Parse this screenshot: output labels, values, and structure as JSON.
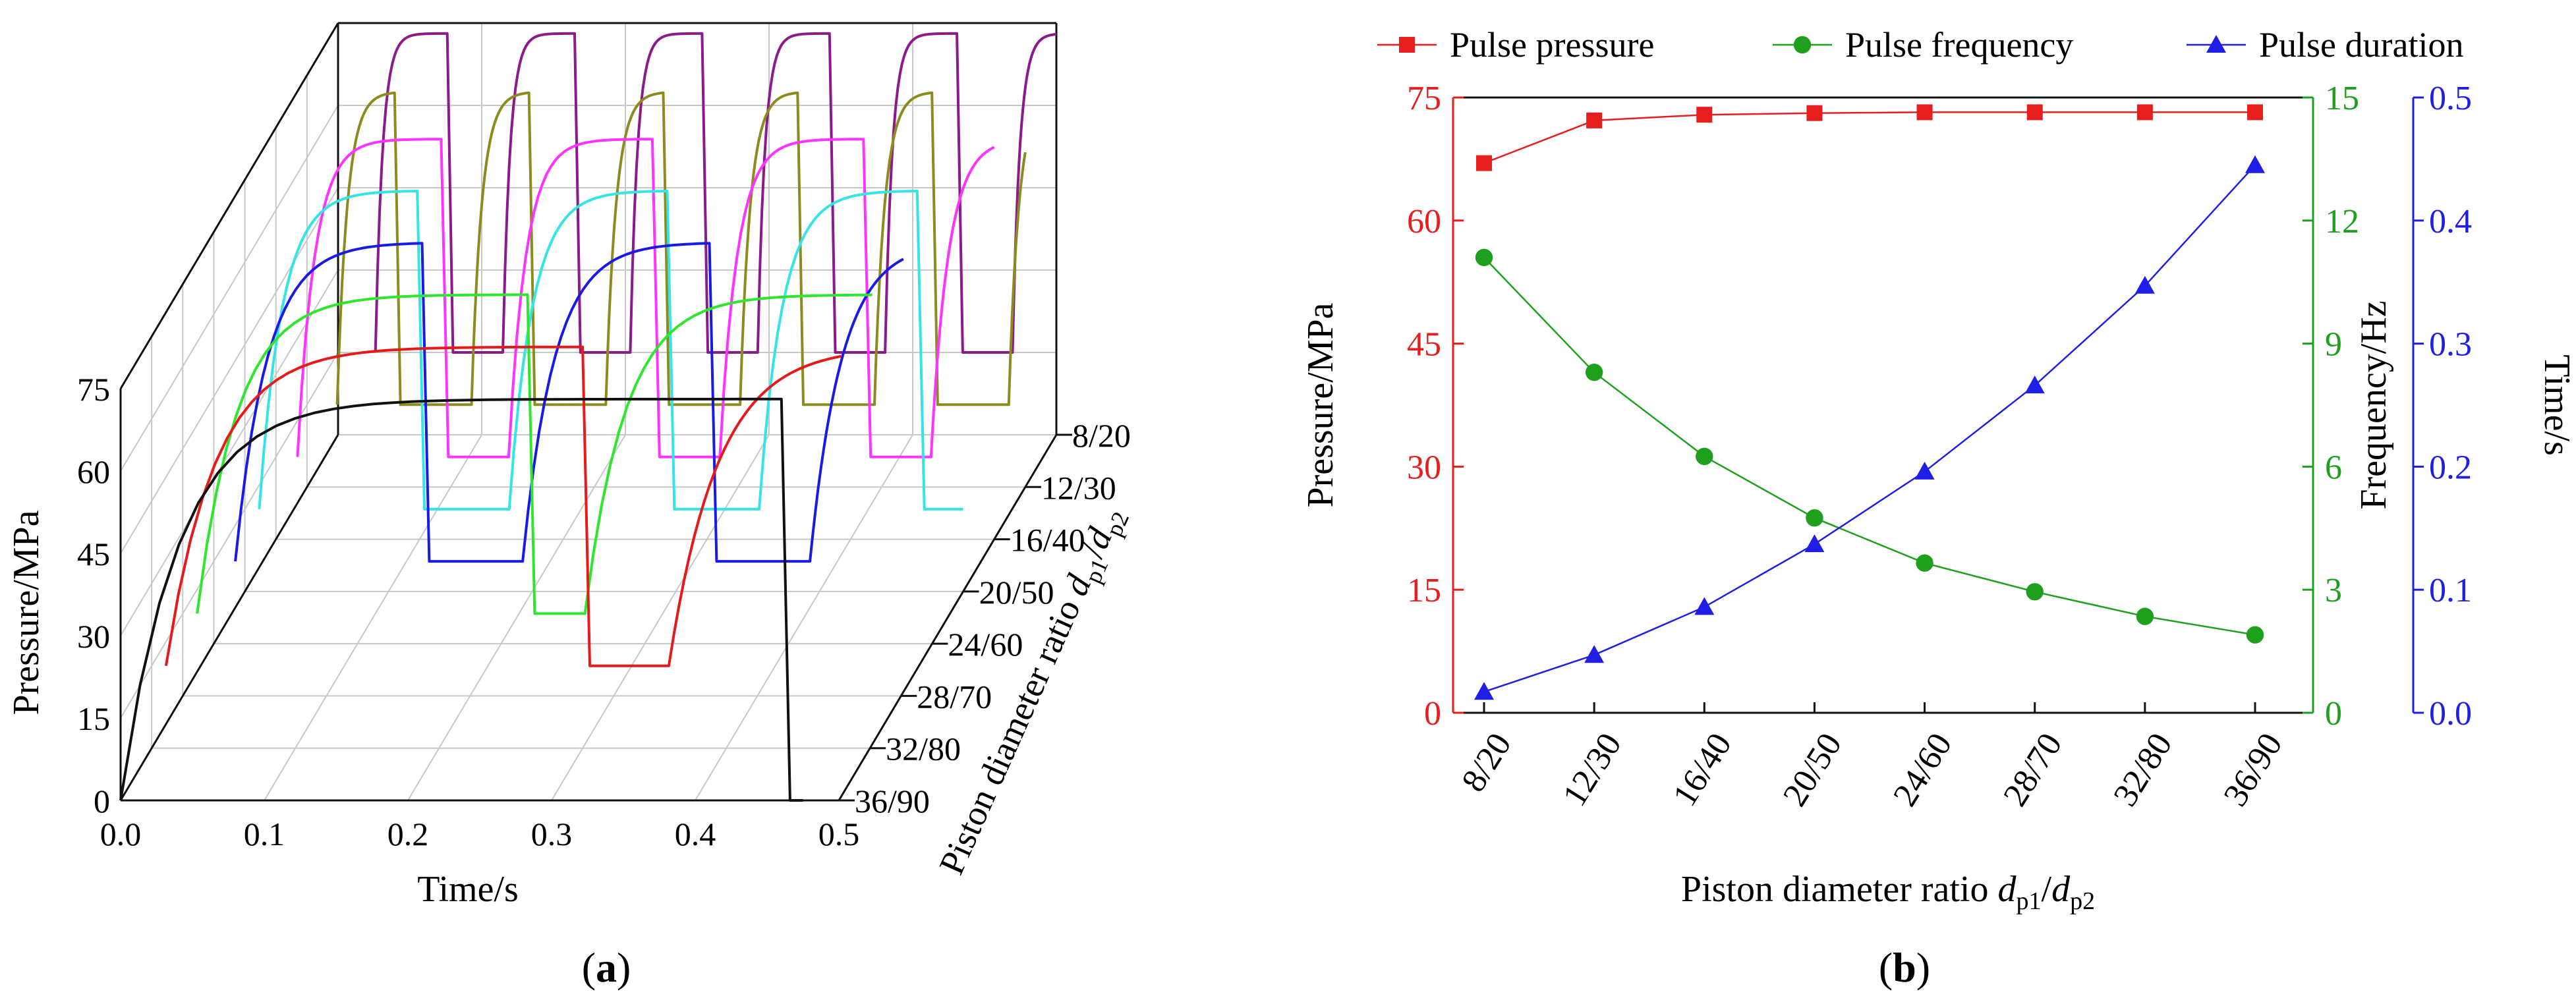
{
  "chart_data": [
    {
      "panel_label": "a",
      "type": "line",
      "subtype": "3d-waterfall",
      "xlabel": "Time/s",
      "ylabel": "Pressure/MPa",
      "zlabel_prefix": "Piston diameter ratio ",
      "zlabel_var1": "d",
      "zlabel_sub1": "p1",
      "zlabel_sep": "/",
      "zlabel_var2": "d",
      "zlabel_sub2": "p2",
      "xlim": [
        0,
        0.5
      ],
      "ylim": [
        0,
        75
      ],
      "x_ticks": [
        "0.0",
        "0.1",
        "0.2",
        "0.3",
        "0.4",
        "0.5"
      ],
      "y_ticks": [
        "0",
        "15",
        "30",
        "45",
        "60",
        "75"
      ],
      "z_ticks": [
        "8/20",
        "12/30",
        "16/40",
        "20/50",
        "24/60",
        "28/70",
        "32/80",
        "36/90"
      ],
      "series": [
        {
          "name": "8/20",
          "color": "#8B1A8B",
          "peak": 73.1,
          "low": 15.0,
          "start": 0.026,
          "period": 0.0887,
          "on": 0.05,
          "rise": 0.02,
          "fall": 0.004,
          "tau": 0.005,
          "end": 0.5
        },
        {
          "name": "12/30",
          "color": "#8C8C1E",
          "peak": 72.0,
          "low": 15.0,
          "start": 0.021,
          "period": 0.0935,
          "on": 0.04,
          "rise": 0.004,
          "fall": 0.004,
          "tau": 0.007,
          "end": 0.5
        },
        {
          "name": "16/40",
          "color": "#FF33FF",
          "peak": 72.9,
          "low": 15.0,
          "start": 0.015,
          "period": 0.147,
          "on": 0.1,
          "rise": 0.004,
          "fall": 0.005,
          "tau": 0.012,
          "end": 0.5
        },
        {
          "name": "20/50",
          "color": "#33E5E5",
          "peak": 73.0,
          "low": 15.0,
          "start": 0.01,
          "period": 0.174,
          "on": 0.11,
          "rise": 0.004,
          "fall": 0.005,
          "tau": 0.016,
          "end": 0.5
        },
        {
          "name": "24/60",
          "color": "#1A1AE6",
          "peak": 73.1,
          "low": 15.0,
          "start": 0.015,
          "period": 0.2,
          "on": 0.13,
          "rise": 0.004,
          "fall": 0.005,
          "tau": 0.022,
          "end": 0.48
        },
        {
          "name": "28/70",
          "color": "#2EE62E",
          "peak": 73.1,
          "low": 15.0,
          "start": 0.01,
          "period": 0.27,
          "on": 0.23,
          "rise": 0.004,
          "fall": 0.005,
          "tau": 0.028,
          "end": 0.48
        },
        {
          "name": "32/80",
          "color": "#E61A1A",
          "peak": 73.1,
          "low": 15.0,
          "start": 0.01,
          "period": 0.35,
          "on": 0.29,
          "rise": 0.004,
          "fall": 0.005,
          "tau": 0.034,
          "end": 0.48
        },
        {
          "name": "36/90",
          "color": "#111111",
          "peak": 73.1,
          "low": 0.0,
          "start": 0.0,
          "period": 0.5,
          "on": 0.46,
          "rise": 0.004,
          "fall": 0.006,
          "tau": 0.04,
          "end": 0.475
        }
      ]
    },
    {
      "panel_label": "b",
      "type": "line",
      "xlabel_prefix": "Piston diameter ratio ",
      "xlabel_var1": "d",
      "xlabel_sub1": "p1",
      "xlabel_sep": "/",
      "xlabel_var2": "d",
      "xlabel_sub2": "p2",
      "categories": [
        "8/20",
        "12/30",
        "16/40",
        "20/50",
        "24/60",
        "28/70",
        "32/80",
        "36/90"
      ],
      "axes": {
        "left": {
          "label": "Pressure/MPa",
          "ylim": [
            0,
            75
          ],
          "ticks": [
            "0",
            "15",
            "30",
            "45",
            "60",
            "75"
          ],
          "color": "#E61E1E"
        },
        "right1": {
          "label": "Frequency/Hz",
          "ylim": [
            0,
            15
          ],
          "ticks": [
            "0",
            "3",
            "6",
            "9",
            "12",
            "15"
          ],
          "color": "#1EA01E"
        },
        "right2": {
          "label": "Time/s",
          "ylim": [
            0,
            0.5
          ],
          "ticks": [
            "0.0",
            "0.1",
            "0.2",
            "0.3",
            "0.4",
            "0.5"
          ],
          "color": "#1E1EE6"
        }
      },
      "series": [
        {
          "name": "Pulse pressure",
          "axis": "left",
          "marker": "square",
          "color": "#E61E1E",
          "values": [
            67.0,
            72.2,
            72.9,
            73.1,
            73.2,
            73.2,
            73.2,
            73.2
          ]
        },
        {
          "name": "Pulse frequency",
          "axis": "right1",
          "marker": "circle",
          "color": "#1EA01E",
          "values": [
            11.1,
            8.3,
            6.25,
            4.75,
            3.65,
            2.95,
            2.35,
            1.9
          ]
        },
        {
          "name": "Pulse duration",
          "axis": "right2",
          "marker": "triangle",
          "color": "#1E1EE6",
          "values": [
            0.017,
            0.047,
            0.086,
            0.137,
            0.196,
            0.266,
            0.347,
            0.445
          ]
        }
      ]
    }
  ]
}
